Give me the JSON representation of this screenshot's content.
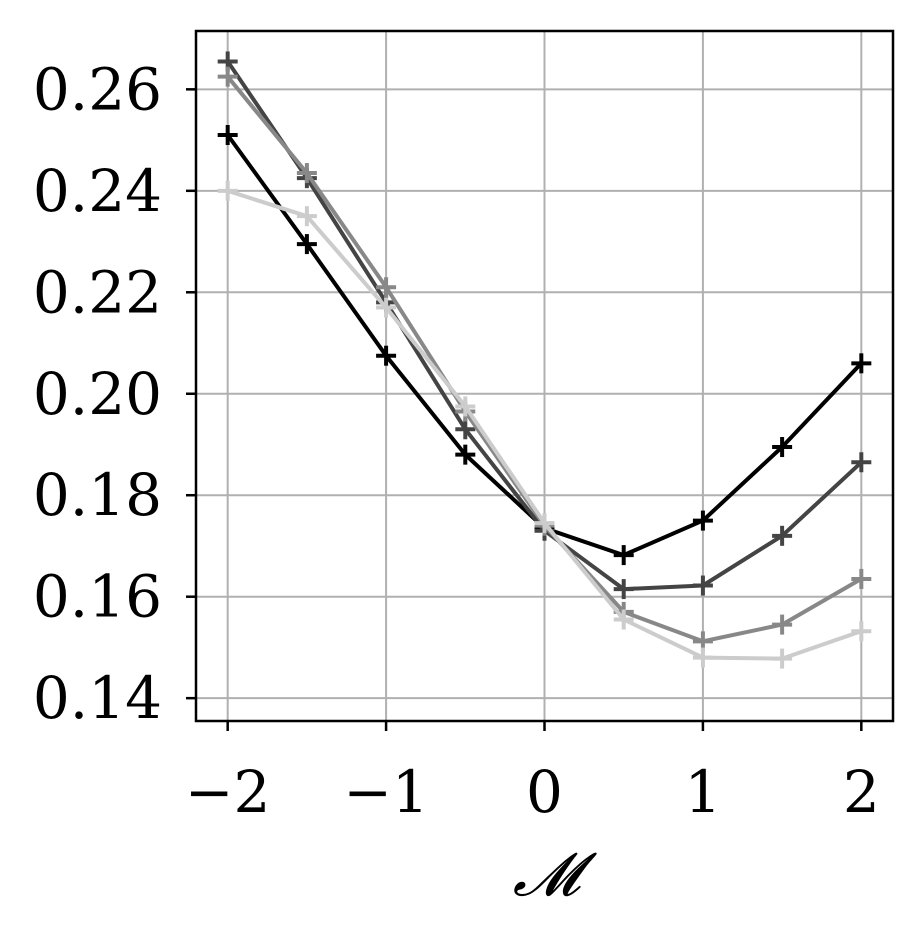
{
  "chart_data": {
    "type": "line",
    "title": "",
    "xlabel": "𝓜",
    "ylabel": "",
    "x": [
      -2,
      -1.5,
      -1,
      -0.5,
      0,
      0.5,
      1,
      1.5,
      2
    ],
    "xlim": [
      -2.2,
      2.2
    ],
    "ylim": [
      0.1355,
      0.2715
    ],
    "xticks": [
      -2,
      -1,
      0,
      1,
      2
    ],
    "xtick_labels": [
      "−2",
      "−1",
      "0",
      "1",
      "2"
    ],
    "yticks": [
      0.14,
      0.16,
      0.18,
      0.2,
      0.22,
      0.24,
      0.26
    ],
    "ytick_labels": [
      "0.14",
      "0.16",
      "0.18",
      "0.20",
      "0.22",
      "0.24",
      "0.26"
    ],
    "grid": true,
    "legend": "none",
    "marker": "plus",
    "series": [
      {
        "color": "#000000",
        "values": [
          0.251,
          0.2295,
          0.2075,
          0.188,
          0.1735,
          0.1682,
          0.175,
          0.1895,
          0.206
        ]
      },
      {
        "color": "#444444",
        "values": [
          0.2655,
          0.2425,
          0.218,
          0.193,
          0.173,
          0.1615,
          0.1622,
          0.172,
          0.1865
        ]
      },
      {
        "color": "#888888",
        "values": [
          0.2625,
          0.2435,
          0.221,
          0.1965,
          0.174,
          0.157,
          0.1512,
          0.1545,
          0.1635
        ]
      },
      {
        "color": "#cccccc",
        "values": [
          0.24,
          0.235,
          0.217,
          0.1975,
          0.1745,
          0.1555,
          0.148,
          0.1478,
          0.1532
        ]
      }
    ]
  }
}
